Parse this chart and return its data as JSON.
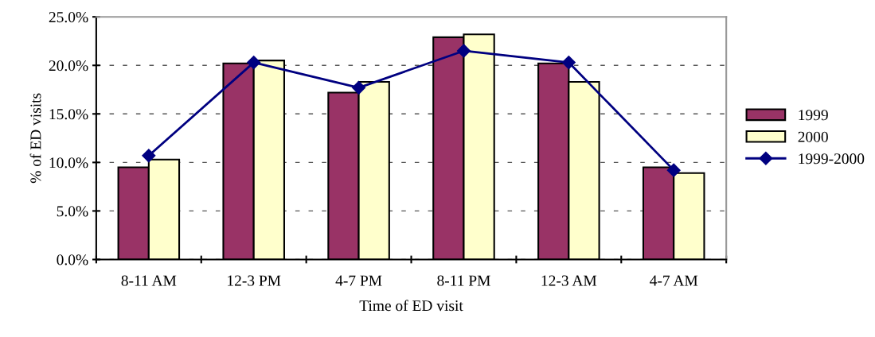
{
  "chart_data": {
    "type": "bar",
    "xlabel": "Time of ED visit",
    "ylabel": "% of ED visits",
    "categories": [
      "8-11 AM",
      "12-3 PM",
      "4-7 PM",
      "8-11 PM",
      "12-3 AM",
      "4-7 AM"
    ],
    "series": [
      {
        "name": "1999",
        "color": "#993366",
        "values": [
          9.5,
          20.2,
          17.2,
          22.9,
          20.2,
          9.5
        ]
      },
      {
        "name": "2000",
        "color": "#ffffcc",
        "values": [
          10.3,
          20.5,
          18.3,
          23.2,
          18.3,
          8.9
        ]
      },
      {
        "name": "1999-2000",
        "type": "line",
        "color": "#000080",
        "values": [
          10.7,
          20.3,
          17.7,
          21.5,
          20.3,
          9.2
        ],
        "marker": "diamond"
      }
    ],
    "ylim": [
      0,
      25
    ],
    "yticks": [
      {
        "value": 0,
        "label": "0.0%"
      },
      {
        "value": 5,
        "label": "5.0%"
      },
      {
        "value": 10,
        "label": "10.0%"
      },
      {
        "value": 15,
        "label": "15.0%"
      },
      {
        "value": 20,
        "label": "20.0%"
      },
      {
        "value": 25,
        "label": "25.0%"
      }
    ],
    "grid": "y",
    "legend": "right"
  }
}
